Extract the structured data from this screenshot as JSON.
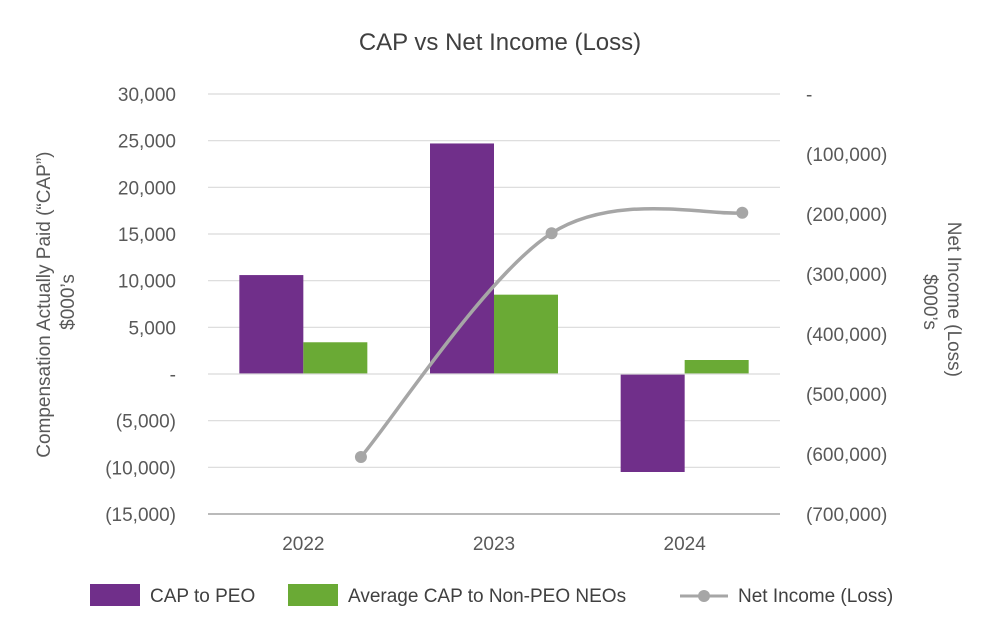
{
  "chart_data": {
    "type": "bar",
    "title": "CAP vs Net Income (Loss)",
    "categories": [
      "2022",
      "2023",
      "2024"
    ],
    "left_axis": {
      "label_line1": "Compensation Actually Paid (“CAP”)",
      "label_line2": "$000’s",
      "range": [
        -15000,
        30000
      ],
      "ticks": [
        30000,
        25000,
        20000,
        15000,
        10000,
        5000,
        0,
        -5000,
        -10000,
        -15000
      ],
      "tick_labels": [
        "30,000",
        "25,000",
        "20,000",
        "15,000",
        "10,000",
        "5,000",
        "-",
        "(5,000)",
        "(10,000)",
        "(15,000)"
      ]
    },
    "right_axis": {
      "label_line1": "Net Income (Loss)",
      "label_line2": "$000’s",
      "range": [
        -700000,
        0
      ],
      "ticks": [
        0,
        -100000,
        -200000,
        -300000,
        -400000,
        -500000,
        -600000,
        -700000
      ],
      "tick_labels": [
        "-",
        "(100,000)",
        "(200,000)",
        "(300,000)",
        "(400,000)",
        "(500,000)",
        "(600,000)",
        "(700,000)"
      ]
    },
    "series": [
      {
        "name": "CAP to PEO",
        "type": "bar",
        "axis": "left",
        "color": "#702f8a",
        "values": [
          10600,
          24700,
          -10500
        ]
      },
      {
        "name": "Average CAP to Non-PEO NEOs",
        "type": "bar",
        "axis": "left",
        "color": "#6aaa35",
        "values": [
          3400,
          8500,
          1500
        ]
      },
      {
        "name": "Net Income (Loss)",
        "type": "line",
        "axis": "right",
        "color": "#a6a6a6",
        "values": [
          -605000,
          -232000,
          -198000
        ]
      }
    ],
    "grid": true,
    "legend_position": "bottom"
  },
  "colors": {
    "grid": "#d9d9d9",
    "baseline": "#a6a6a6",
    "text": "#595959"
  }
}
